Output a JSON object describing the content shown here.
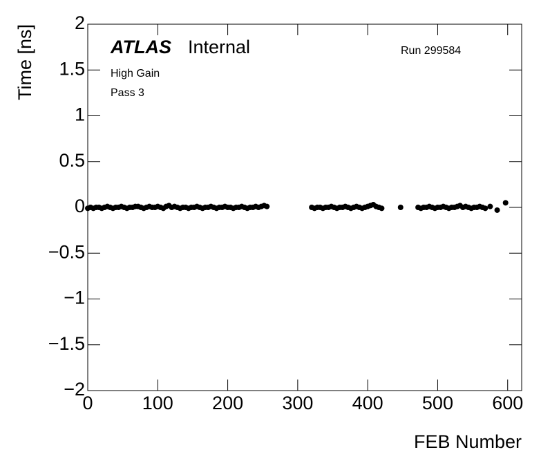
{
  "chart_data": {
    "type": "scatter",
    "annotations": {
      "atlas": "ATLAS",
      "internal": "Internal",
      "run": "Run 299584",
      "gain": "High Gain",
      "pass": "Pass 3"
    },
    "xlabel": "FEB Number",
    "ylabel": "Time [ns]",
    "xlim": [
      0,
      620
    ],
    "xticks": [
      0,
      100,
      200,
      300,
      400,
      500,
      600
    ],
    "ylim": [
      -2,
      2
    ],
    "yticks": [
      {
        "value": -2,
        "label": "−2"
      },
      {
        "value": -1.5,
        "label": "−1.5"
      },
      {
        "value": -1,
        "label": "−1"
      },
      {
        "value": -0.5,
        "label": "−0.5"
      },
      0,
      0.5,
      1,
      1.5,
      2
    ],
    "color": "#000000",
    "x": [
      0,
      4,
      8,
      12,
      16,
      20,
      24,
      28,
      32,
      36,
      40,
      44,
      48,
      52,
      56,
      60,
      64,
      68,
      72,
      76,
      80,
      84,
      88,
      92,
      96,
      100,
      104,
      108,
      112,
      116,
      120,
      124,
      128,
      132,
      136,
      140,
      144,
      148,
      152,
      156,
      160,
      164,
      168,
      172,
      176,
      180,
      184,
      188,
      192,
      196,
      200,
      204,
      208,
      212,
      216,
      220,
      224,
      228,
      232,
      236,
      240,
      244,
      248,
      252,
      256,
      320,
      324,
      328,
      332,
      336,
      340,
      344,
      348,
      352,
      356,
      360,
      364,
      368,
      372,
      376,
      380,
      384,
      388,
      392,
      396,
      400,
      404,
      408,
      412,
      416,
      420,
      447,
      472,
      476,
      480,
      484,
      488,
      492,
      496,
      500,
      504,
      508,
      512,
      516,
      520,
      524,
      528,
      532,
      536,
      540,
      544,
      548,
      552,
      556,
      560,
      564,
      568,
      575,
      585,
      597
    ],
    "values": [
      -0.01,
      0,
      -0.01,
      0,
      0,
      -0.01,
      0,
      0.01,
      0,
      -0.01,
      0,
      0,
      0.01,
      0,
      -0.01,
      0,
      0,
      0.01,
      0.01,
      0,
      -0.01,
      0,
      0.01,
      0,
      0,
      0.01,
      0,
      -0.01,
      0.01,
      0.02,
      0,
      0.01,
      0,
      -0.01,
      0,
      0,
      -0.01,
      0,
      0,
      0.01,
      0,
      -0.01,
      0,
      0,
      0.01,
      0,
      -0.01,
      0,
      0,
      0.01,
      0,
      0,
      -0.01,
      0,
      0,
      0.01,
      0,
      -0.01,
      0,
      0,
      0.01,
      0,
      0.01,
      0.02,
      0.01,
      0,
      -0.01,
      0,
      0,
      -0.01,
      0,
      0,
      0.01,
      0,
      -0.01,
      0,
      0,
      0.01,
      0,
      -0.01,
      0,
      0.01,
      0,
      -0.01,
      0,
      0.01,
      0.02,
      0.03,
      0.01,
      0,
      -0.01,
      0,
      0,
      -0.01,
      0,
      0,
      0.01,
      0,
      -0.01,
      0,
      0,
      0.01,
      0,
      -0.01,
      0,
      0,
      0.01,
      0.02,
      0,
      0.01,
      0,
      -0.01,
      0,
      0,
      0.01,
      0,
      -0.01,
      0.01,
      -0.03,
      0.05
    ]
  }
}
